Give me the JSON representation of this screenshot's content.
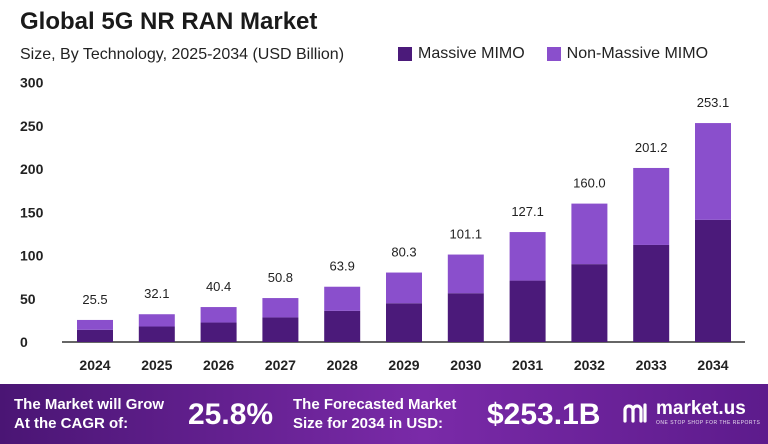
{
  "chart_data": {
    "type": "bar",
    "stacked": true,
    "title": "Global 5G NR RAN Market",
    "subtitle": "Size, By Technology, 2025-2034 (USD Billion)",
    "categories": [
      "2024",
      "2025",
      "2026",
      "2027",
      "2028",
      "2029",
      "2030",
      "2031",
      "2032",
      "2033",
      "2034"
    ],
    "totals": [
      25.5,
      32.1,
      40.4,
      50.8,
      63.9,
      80.3,
      101.1,
      127.1,
      160.0,
      201.2,
      253.1
    ],
    "total_labels": [
      "25.5",
      "32.1",
      "40.4",
      "50.8",
      "63.9",
      "80.3",
      "101.1",
      "127.1",
      "160.0",
      "201.2",
      "253.1"
    ],
    "series": [
      {
        "name": "Massive MIMO",
        "color": "#4b1a7a",
        "values": [
          14.1,
          17.9,
          22.5,
          28.4,
          36.0,
          44.8,
          56.4,
          71.0,
          90.0,
          112.2,
          141.2
        ]
      },
      {
        "name": "Non-Massive MIMO",
        "color": "#8a4fcc",
        "values": [
          11.4,
          14.2,
          17.9,
          22.4,
          27.9,
          35.5,
          44.7,
          56.1,
          70.0,
          89.0,
          111.9
        ]
      }
    ],
    "ylim": [
      0,
      300
    ],
    "yticks": [
      0,
      50,
      100,
      150,
      200,
      250,
      300
    ],
    "grid": false,
    "legend_position": "top-right"
  },
  "footer": {
    "cagr_label_line1": "The Market will Grow",
    "cagr_label_line2": "At the CAGR of:",
    "cagr_value": "25.8%",
    "forecast_label_line1": "The Forecasted Market",
    "forecast_label_line2": "Size for 2034 in USD:",
    "forecast_value": "$253.1B",
    "brand_name": "market.us",
    "brand_tagline": "ONE STOP SHOP FOR THE REPORTS"
  }
}
